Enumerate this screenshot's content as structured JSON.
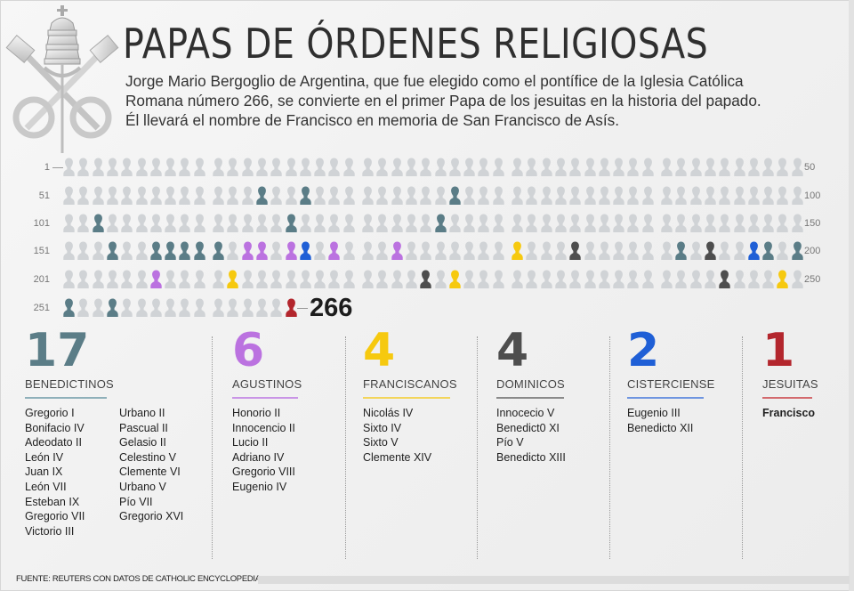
{
  "title": "PAPAS DE ÓRDENES RELIGIOSAS",
  "subtitle_lines": [
    "Jorge Mario Bergoglio de Argentina, que fue elegido como el pontífice de la Iglesia Católica",
    "Romana número 266, se convierte en el primer Papa de los jesuitas en la historia del papado.",
    "Él llevará el nombre de Francisco en memoria de San Francisco de Asís."
  ],
  "logo": "papal-coat-of-arms",
  "chart_data": {
    "type": "table",
    "title": "PAPAS DE ÓRDENES RELIGIOSAS",
    "total_popes": 266,
    "highlight_label": "266",
    "row_labels_left": [
      "1",
      "51",
      "101",
      "151",
      "201",
      "251"
    ],
    "row_labels_right": [
      "50",
      "100",
      "150",
      "200",
      "250"
    ],
    "default_color": "#d0d3d6",
    "orders": [
      {
        "key": "benedictinos",
        "name": "BENEDICTINOS",
        "count": "17",
        "color": "#5b7d87",
        "positions": [
          64,
          67,
          77,
          103,
          116,
          126,
          154,
          157,
          158,
          159,
          160,
          161,
          192,
          198,
          200,
          251,
          254
        ]
      },
      {
        "key": "agustinos",
        "name": "AGUSTINOS",
        "count": "6",
        "color": "#bb72e0",
        "positions": [
          163,
          164,
          166,
          169,
          173,
          207
        ]
      },
      {
        "key": "franciscanos",
        "name": "FRANCISCANOS",
        "count": "4",
        "color": "#f6c90f",
        "positions": [
          181,
          212,
          227,
          249
        ]
      },
      {
        "key": "dominicos",
        "name": "DOMINICOS",
        "count": "4",
        "color": "#4e4e4e",
        "positions": [
          185,
          194,
          225,
          245
        ]
      },
      {
        "key": "cisterciense",
        "name": "CISTERCIENSE",
        "count": "2",
        "color": "#1f5fd6",
        "positions": [
          167,
          197
        ]
      },
      {
        "key": "jesuitas",
        "name": "JESUITAS",
        "count": "1",
        "color": "#b3262d",
        "positions": [
          266
        ]
      }
    ]
  },
  "lists": {
    "benedictinos": {
      "col1": [
        "Gregorio I",
        "Bonifacio IV",
        "Adeodato II",
        "León IV",
        "Juan IX",
        "León VII",
        "Esteban IX",
        "Gregorio VII",
        "Victorio III"
      ],
      "col2": [
        "Urbano II",
        "Pascual II",
        "Gelasio II",
        "Celestino V",
        "Clemente VI",
        "Urbano V",
        "Pío VII",
        "Gregorio XVI"
      ]
    },
    "agustinos": [
      "Honorio II",
      "Innocencio II",
      "Lucio II",
      "Adriano IV",
      "Gregorio VIII",
      "Eugenio IV"
    ],
    "franciscanos": [
      "Nicolás IV",
      "Sixto IV",
      "Sixto V",
      "Clemente XIV"
    ],
    "dominicos": [
      "Innocecio V",
      "Benedict0 XI",
      "Pío V",
      "Benedicto XIII"
    ],
    "cisterciense": [
      "Eugenio III",
      "Benedicto XII"
    ],
    "jesuitas": [
      "Francisco"
    ]
  },
  "source": "FUENTE: REUTERS CON DATOS DE CATHOLIC ENCYCLOPEDIA."
}
